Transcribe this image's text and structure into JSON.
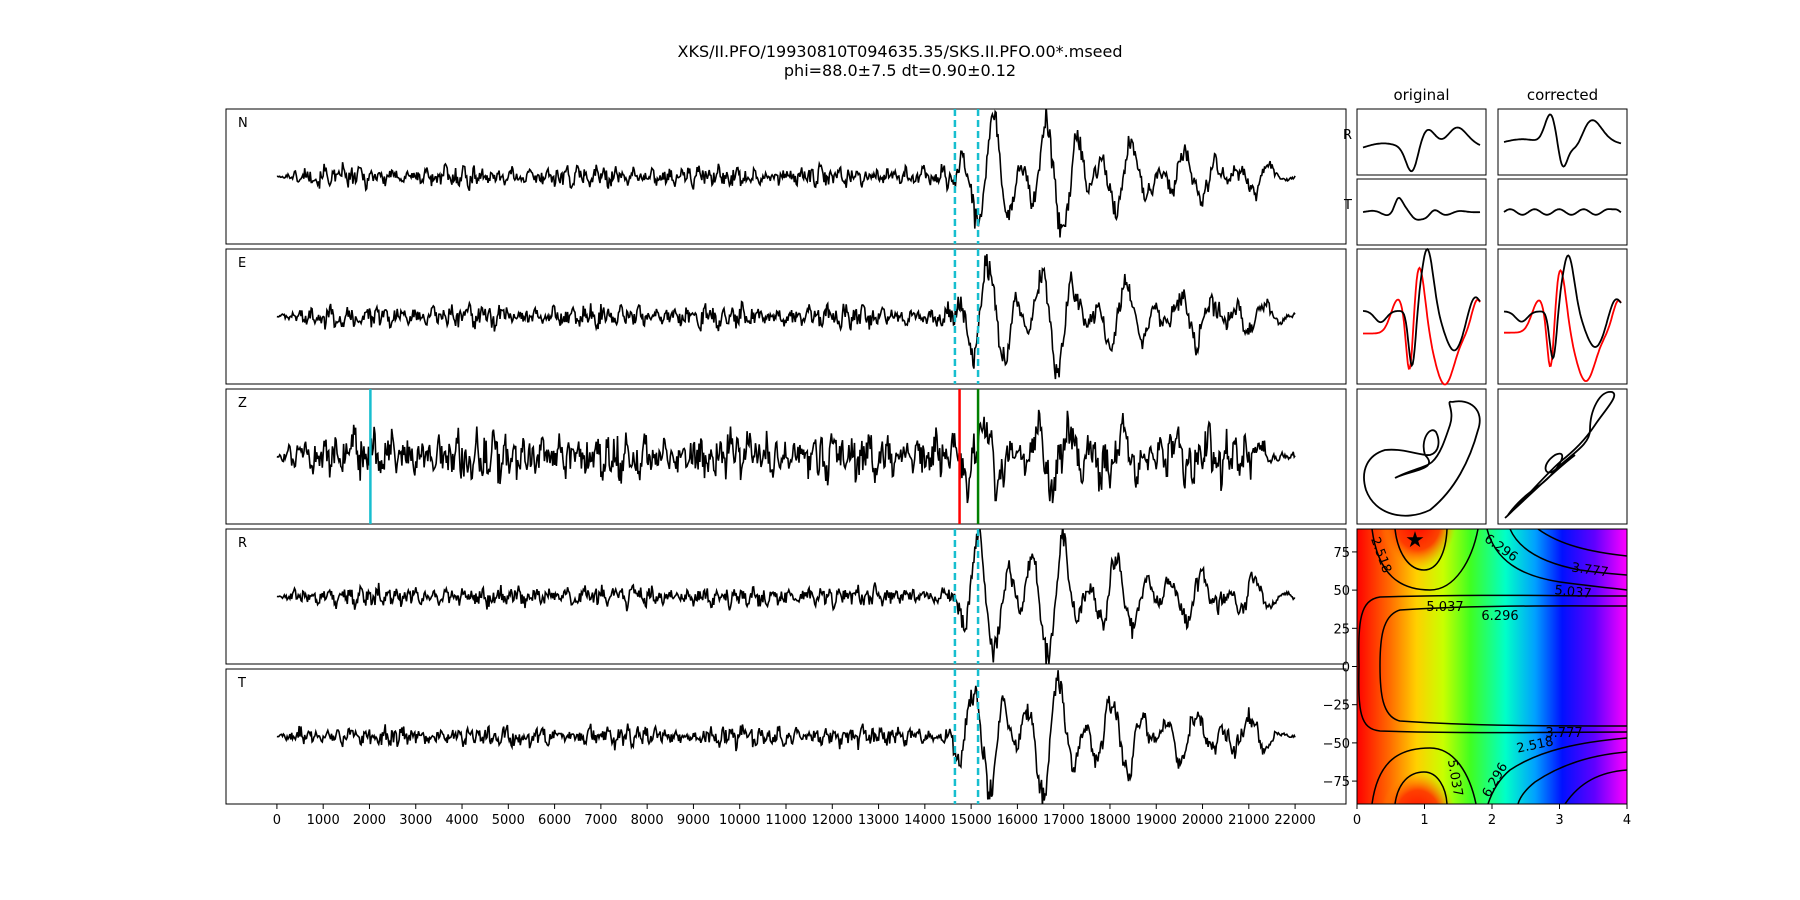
{
  "header": {
    "title": "XKS/II.PFO/19930810T094635.35/SKS.II.PFO.00*.mseed",
    "subtitle": "phi=88.0±7.5 dt=0.90±0.12"
  },
  "chart_data": [
    {
      "type": "line",
      "name": "seismogram-traces",
      "x_ticks": [
        0,
        1000,
        2000,
        3000,
        4000,
        5000,
        6000,
        7000,
        8000,
        9000,
        10000,
        11000,
        12000,
        13000,
        14000,
        15000,
        16000,
        17000,
        18000,
        19000,
        20000,
        21000,
        22000
      ],
      "xlim": [
        -1100,
        23100
      ],
      "ylim": [
        -1,
        1
      ],
      "trace_range": [
        0,
        22000
      ],
      "signal_onset": 14600,
      "traces": [
        {
          "label": "N",
          "noise": 0.12,
          "signal": 1.0
        },
        {
          "label": "E",
          "noise": 0.13,
          "signal": 0.9
        },
        {
          "label": "Z",
          "noise": 0.28,
          "signal": 0.55
        },
        {
          "label": "R",
          "noise": 0.12,
          "signal": 1.0
        },
        {
          "label": "T",
          "noise": 0.12,
          "signal": 1.0
        }
      ],
      "window_lines": {
        "x": [
          14650,
          15150
        ],
        "color": "#17becf",
        "style": "dashed",
        "panels": [
          "N",
          "E",
          "R",
          "T"
        ]
      },
      "markers": [
        {
          "x": 2020,
          "color": "#17becf",
          "panel": "Z"
        },
        {
          "x": 14750,
          "color": "#ff0000",
          "panel": "Z"
        },
        {
          "x": 15150,
          "color": "#008000",
          "panel": "Z"
        }
      ]
    },
    {
      "type": "line",
      "name": "waveform-insets",
      "columns": [
        "original",
        "corrected"
      ],
      "row_labels": [
        "R",
        "T"
      ]
    },
    {
      "type": "heatmap",
      "name": "splitting-grid",
      "xlim": [
        0,
        4
      ],
      "ylim": [
        -90,
        90
      ],
      "x_ticks": [
        0,
        1,
        2,
        3,
        4
      ],
      "y_ticks": [
        75,
        50,
        25,
        0,
        -25,
        -50,
        -75
      ],
      "best_fit": {
        "dt": 0.9,
        "phi": 88.0
      },
      "contour_labels": [
        "2.518",
        "5.037",
        "6.296",
        "3.777",
        "5.037",
        "6.296",
        "3.777",
        "2.518",
        "5.037",
        "6.296"
      ]
    }
  ]
}
